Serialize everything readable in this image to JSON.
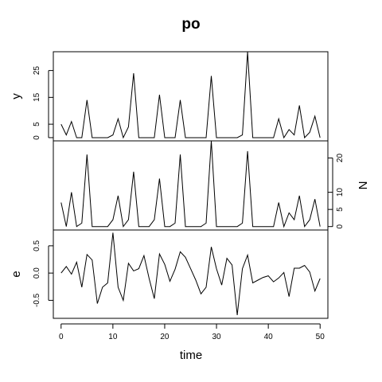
{
  "chart_data": {
    "type": "line",
    "title": "po",
    "xlabel": "time",
    "x": [
      0,
      1,
      2,
      3,
      4,
      5,
      6,
      7,
      8,
      9,
      10,
      11,
      12,
      13,
      14,
      15,
      16,
      17,
      18,
      19,
      20,
      21,
      22,
      23,
      24,
      25,
      26,
      27,
      28,
      29,
      30,
      31,
      32,
      33,
      34,
      35,
      36,
      37,
      38,
      39,
      40,
      41,
      42,
      43,
      44,
      45,
      46,
      47,
      48,
      49,
      50
    ],
    "xlim": [
      -1.5,
      51.5
    ],
    "xticks": [
      0,
      10,
      20,
      30,
      40,
      50
    ],
    "panels": [
      {
        "ylabel": "y",
        "ylabel_side": "left",
        "ylim": [
          -1.2,
          32
        ],
        "yticks": [
          0,
          5,
          15,
          25
        ],
        "values": [
          5,
          1,
          6,
          0,
          0,
          14,
          0,
          0,
          0,
          0,
          1,
          7,
          0,
          4,
          24,
          0,
          0,
          0,
          0,
          16,
          0,
          0,
          0,
          14,
          0,
          0,
          0,
          0,
          0,
          23,
          0,
          0,
          0,
          0,
          0,
          1,
          32,
          0,
          0,
          0,
          0,
          0,
          7,
          0,
          3,
          1,
          12,
          0,
          2,
          8,
          0
        ]
      },
      {
        "ylabel": "N",
        "ylabel_side": "right",
        "ylim": [
          -1,
          25
        ],
        "yticks": [
          0,
          5,
          10,
          20
        ],
        "values": [
          7,
          0,
          10,
          0,
          1,
          21,
          0,
          0,
          0,
          0,
          2,
          9,
          0,
          2,
          16,
          0,
          0,
          0,
          2,
          14,
          0,
          0,
          1,
          21,
          0,
          0,
          0,
          0,
          1,
          25,
          0,
          0,
          0,
          0,
          0,
          1,
          22,
          0,
          0,
          0,
          0,
          0,
          7,
          0,
          4,
          2,
          9,
          0,
          2,
          8,
          0
        ]
      },
      {
        "ylabel": "e",
        "ylabel_side": "left",
        "ylim": [
          -0.83,
          0.79
        ],
        "yticks": [
          -0.5,
          0.0,
          0.5
        ],
        "values": [
          0.0,
          0.12,
          -0.02,
          0.2,
          -0.26,
          0.34,
          0.24,
          -0.56,
          -0.26,
          -0.18,
          0.74,
          -0.26,
          -0.5,
          0.18,
          0.04,
          0.08,
          0.32,
          -0.1,
          -0.47,
          0.35,
          0.16,
          -0.15,
          0.07,
          0.39,
          0.29,
          0.08,
          -0.13,
          -0.38,
          -0.26,
          0.48,
          0.08,
          -0.22,
          0.27,
          0.15,
          -0.77,
          0.08,
          0.33,
          -0.18,
          -0.13,
          -0.08,
          -0.05,
          -0.16,
          -0.09,
          0.01,
          -0.43,
          0.09,
          0.09,
          0.14,
          0.02,
          -0.33,
          -0.1
        ]
      }
    ]
  }
}
